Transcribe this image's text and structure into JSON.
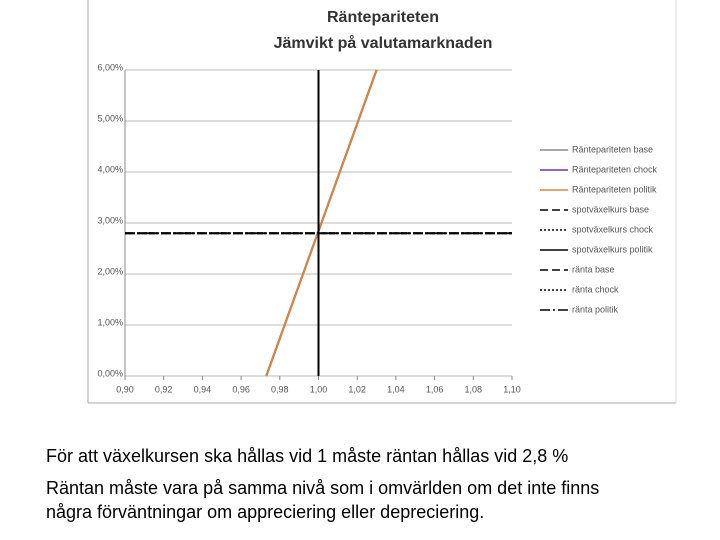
{
  "chart_data": {
    "type": "line",
    "title": "Ränteparitet­en",
    "subtitle": "Jämvikt på valutamarknaden",
    "xlim": [
      0.9,
      1.1
    ],
    "xticks": [
      {
        "value": 0.9,
        "label": "0,90"
      },
      {
        "value": 0.92,
        "label": "0,92"
      },
      {
        "value": 0.94,
        "label": "0,94"
      },
      {
        "value": 0.96,
        "label": "0,96"
      },
      {
        "value": 0.98,
        "label": "0,98"
      },
      {
        "value": 1.0,
        "label": "1,00"
      },
      {
        "value": 1.02,
        "label": "1,02"
      },
      {
        "value": 1.04,
        "label": "1,04"
      },
      {
        "value": 1.06,
        "label": "1,06"
      },
      {
        "value": 1.08,
        "label": "1,08"
      },
      {
        "value": 1.1,
        "label": "1,10"
      }
    ],
    "ylim": [
      0,
      6
    ],
    "yticks": [
      {
        "value": 0,
        "label": "0,00%"
      },
      {
        "value": 1,
        "label": "1,00%"
      },
      {
        "value": 2,
        "label": "2,00%"
      },
      {
        "value": 3,
        "label": "3,00%"
      },
      {
        "value": 4,
        "label": "4,00%"
      },
      {
        "value": 5,
        "label": "5,00%"
      },
      {
        "value": 6,
        "label": "6,00%"
      }
    ],
    "grid": true,
    "legend": "right",
    "series": [
      {
        "name": "Ränteparitet­en base",
        "color": "#8c8c8c",
        "dash": "solid",
        "x": [
          0.973,
          1.03
        ],
        "values": [
          0,
          6
        ]
      },
      {
        "name": "Ränteparitet­en chock",
        "color": "#7030a0",
        "dash": "solid",
        "x": [
          0.973,
          1.03
        ],
        "values": [
          0,
          6
        ]
      },
      {
        "name": "Ränteparitet­en politik",
        "color": "#d9873a",
        "dash": "solid",
        "x": [
          0.973,
          1.03
        ],
        "values": [
          0,
          6
        ]
      },
      {
        "name": "spotväxelkurs base",
        "color": "#000000",
        "dash": "dashed",
        "x": [
          1.0,
          1.0
        ],
        "values": [
          0,
          6
        ]
      },
      {
        "name": "spotväxelkurs chock",
        "color": "#000000",
        "dash": "dotted",
        "x": [
          1.0,
          1.0
        ],
        "values": [
          0,
          6
        ]
      },
      {
        "name": "spotväxelkurs politik",
        "color": "#000000",
        "dash": "solid",
        "x": [
          1.0,
          1.0
        ],
        "values": [
          0,
          6
        ]
      },
      {
        "name": "ränta base",
        "color": "#000000",
        "dash": "dashed",
        "x": [
          0.9,
          1.1
        ],
        "values": [
          2.8,
          2.8
        ]
      },
      {
        "name": "ränta chock",
        "color": "#000000",
        "dash": "dotted",
        "x": [
          0.9,
          1.1
        ],
        "values": [
          2.8,
          2.8
        ]
      },
      {
        "name": "ränta politik",
        "color": "#000000",
        "dash": "dashdot",
        "x": [
          0.9,
          1.1
        ],
        "values": [
          2.8,
          2.8
        ]
      }
    ]
  },
  "caption": [
    "För att växelkursen ska hållas vid 1 måste räntan hållas vid 2,8 %",
    "Räntan måste vara på samma nivå som i omvärlden om det inte finns",
    "några förväntningar om appreciering eller depreciering."
  ]
}
